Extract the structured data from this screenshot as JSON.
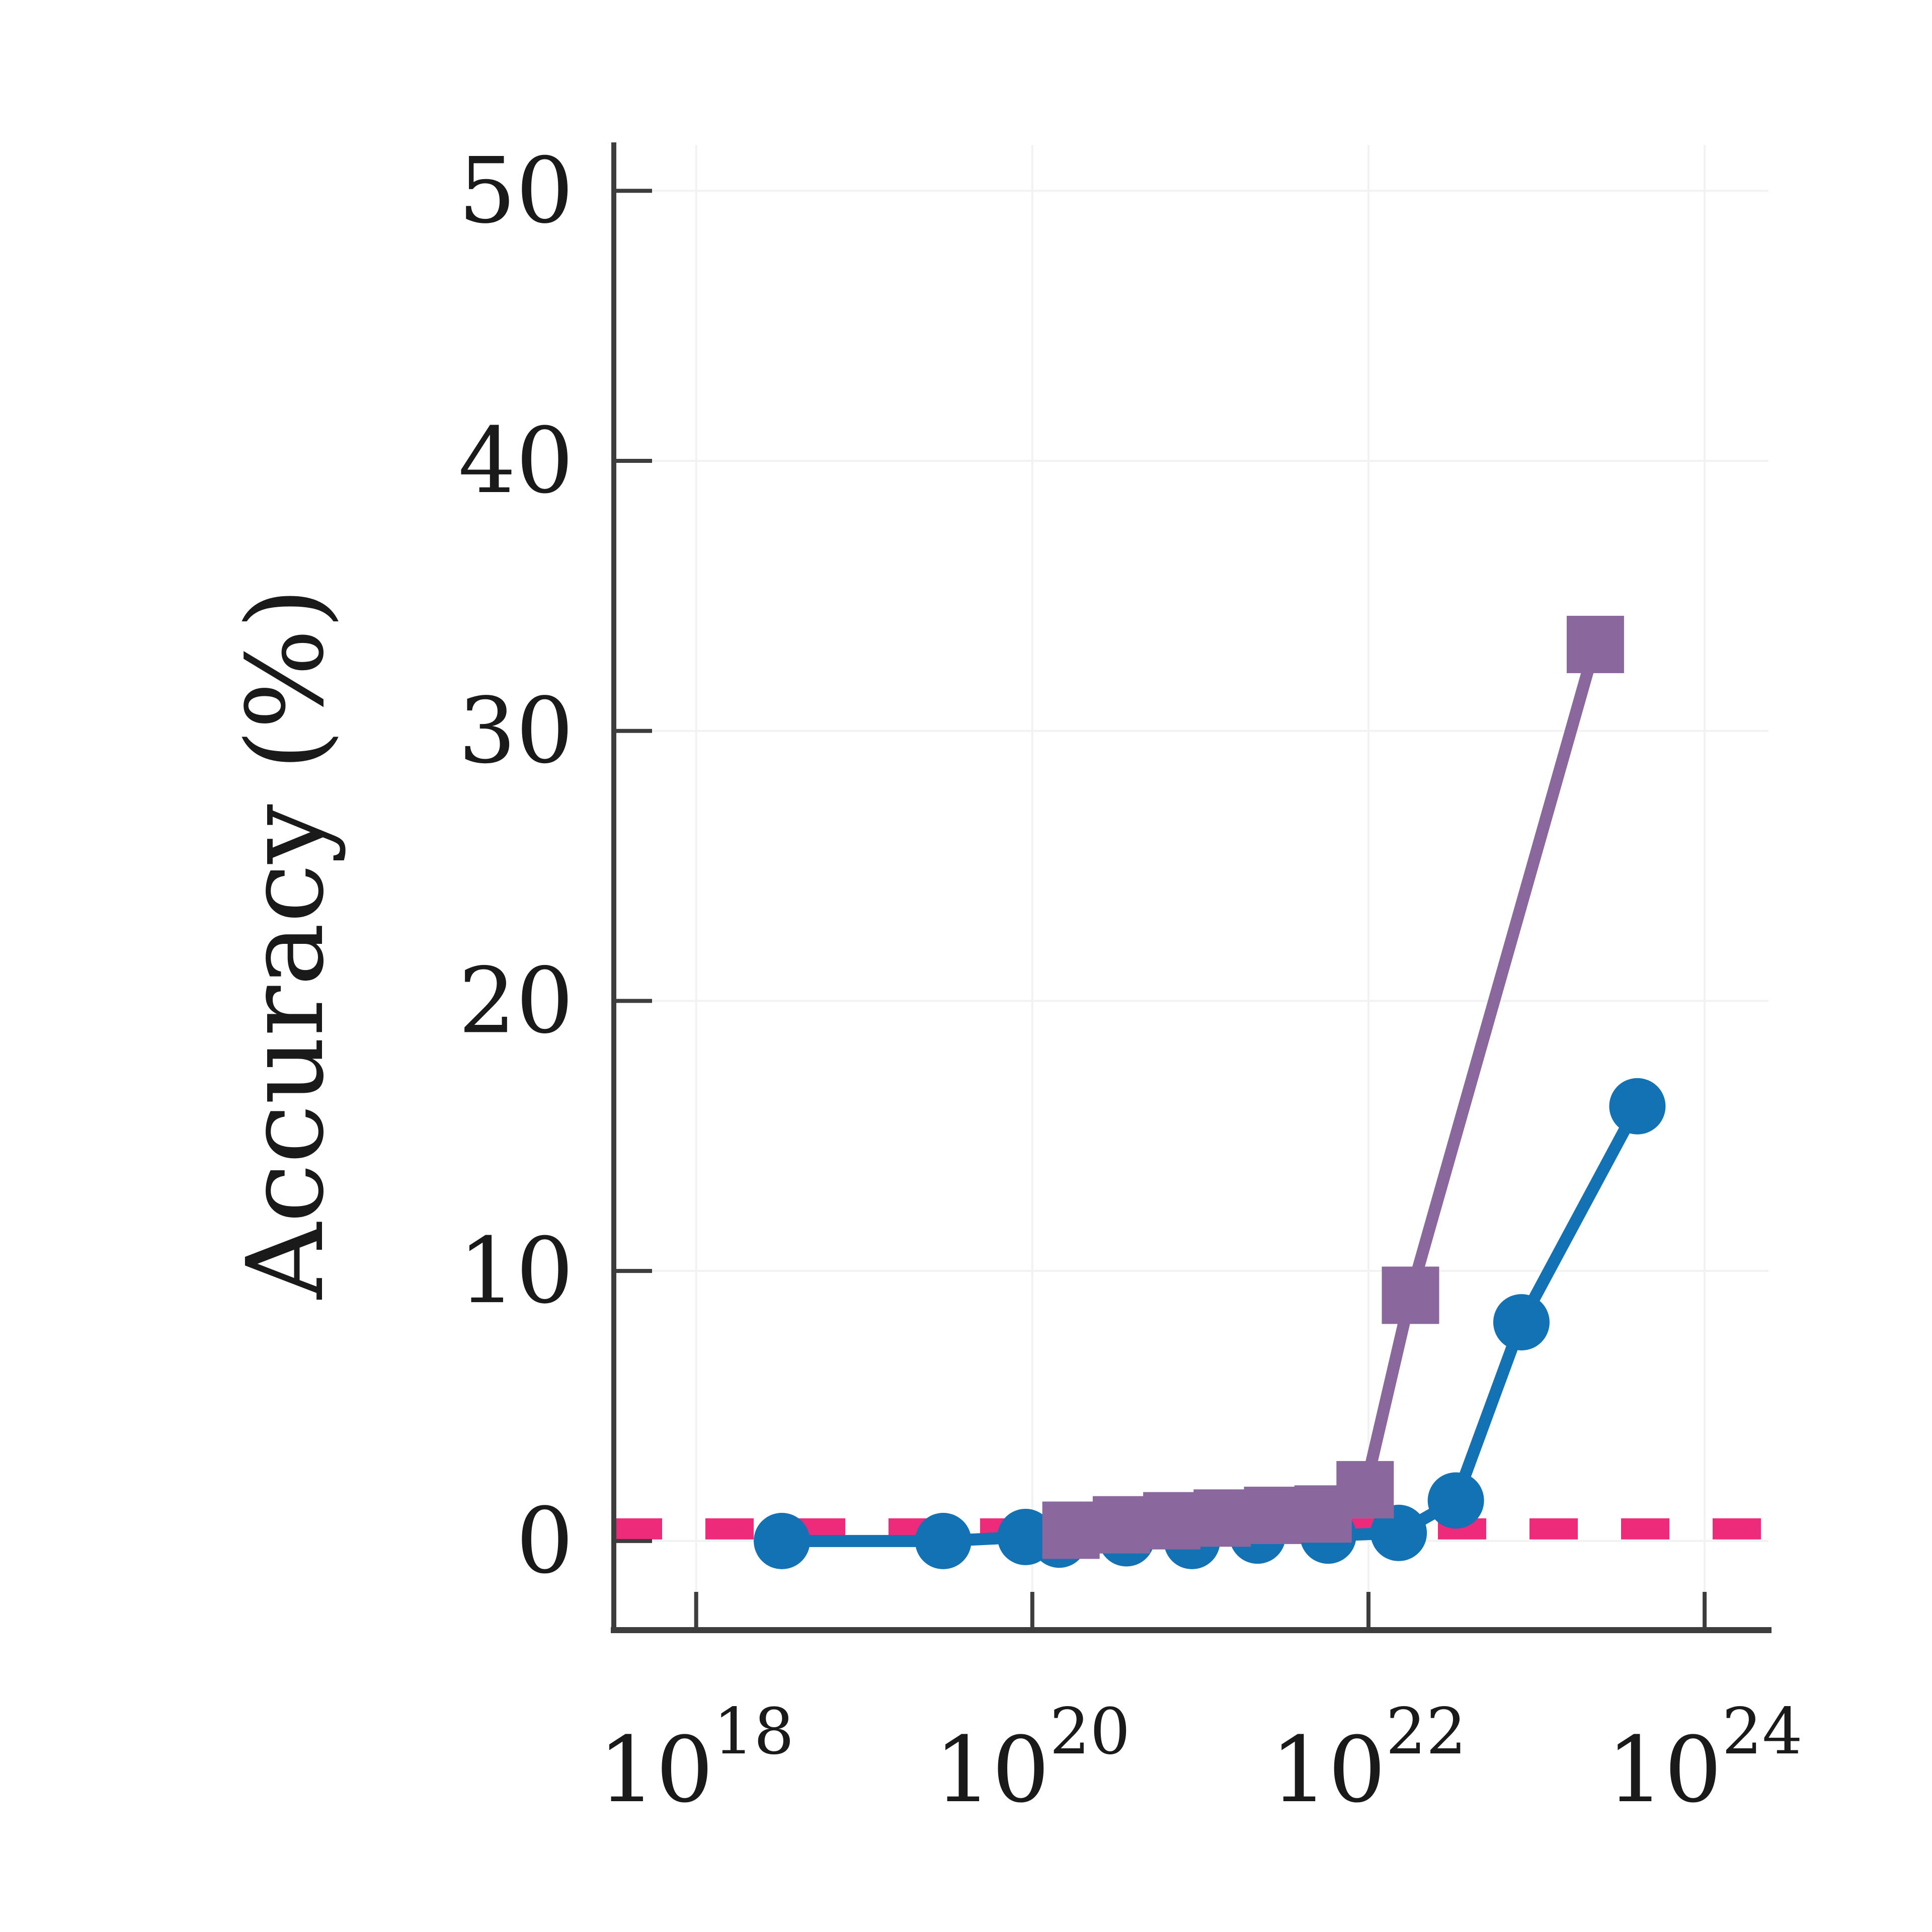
{
  "figure": {
    "type": "scientific-plot",
    "background": "#ffffff",
    "text_color": "#1a1a1a",
    "axis_color": "#3d3d3d",
    "grid_color": "#f2f2f2"
  },
  "chart_data": {
    "type": "line",
    "xscale": "log",
    "title": "",
    "xlabel": "",
    "ylabel": "Accuracy (%)",
    "grid": true,
    "legend": "none",
    "xlim_log10": [
      17.51,
      24.38
    ],
    "ylim": [
      -3.3,
      51.7
    ],
    "x_ticks": [
      {
        "log10": 18,
        "base": "10",
        "exp": "18"
      },
      {
        "log10": 20,
        "base": "10",
        "exp": "20"
      },
      {
        "log10": 22,
        "base": "10",
        "exp": "22"
      },
      {
        "log10": 24,
        "base": "10",
        "exp": "24"
      }
    ],
    "y_ticks": [
      0,
      10,
      20,
      30,
      40,
      50
    ],
    "baseline": {
      "name": "chance-baseline",
      "value": 0.45,
      "color": "#ee2a7b",
      "style": "dashed"
    },
    "series": [
      {
        "name": "blue-circles",
        "marker": "circle",
        "color": "#1272b4",
        "points": [
          {
            "flops": "3.2e18",
            "log10_flops": 18.51,
            "accuracy": 0.0
          },
          {
            "flops": "3.0e19",
            "log10_flops": 19.47,
            "accuracy": 0.0
          },
          {
            "flops": "9.1e19",
            "log10_flops": 19.96,
            "accuracy": 0.15
          },
          {
            "flops": "1.4e20",
            "log10_flops": 20.16,
            "accuracy": 0.05
          },
          {
            "flops": "3.6e20",
            "log10_flops": 20.56,
            "accuracy": 0.1
          },
          {
            "flops": "8.9e20",
            "log10_flops": 20.95,
            "accuracy": 0.0
          },
          {
            "flops": "2.2e21",
            "log10_flops": 21.34,
            "accuracy": 0.2
          },
          {
            "flops": "5.8e21",
            "log10_flops": 21.76,
            "accuracy": 0.2
          },
          {
            "flops": "1.5e22",
            "log10_flops": 22.18,
            "accuracy": 0.3
          },
          {
            "flops": "3.3e22",
            "log10_flops": 22.52,
            "accuracy": 1.5
          },
          {
            "flops": "8.1e22",
            "log10_flops": 22.91,
            "accuracy": 8.1
          },
          {
            "flops": "4.0e23",
            "log10_flops": 23.6,
            "accuracy": 16.1
          }
        ]
      },
      {
        "name": "purple-squares",
        "marker": "square",
        "color": "#8a689d",
        "points": [
          {
            "flops": "1.7e20",
            "log10_flops": 20.23,
            "accuracy": 0.4
          },
          {
            "flops": "3.4e20",
            "log10_flops": 20.53,
            "accuracy": 0.6
          },
          {
            "flops": "6.8e20",
            "log10_flops": 20.83,
            "accuracy": 0.75
          },
          {
            "flops": "1.3e21",
            "log10_flops": 21.13,
            "accuracy": 0.85
          },
          {
            "flops": "2.7e21",
            "log10_flops": 21.43,
            "accuracy": 0.95
          },
          {
            "flops": "5.4e21",
            "log10_flops": 21.73,
            "accuracy": 1.0
          },
          {
            "flops": "9.5e21",
            "log10_flops": 21.98,
            "accuracy": 1.9
          },
          {
            "flops": "1.8e22",
            "log10_flops": 22.25,
            "accuracy": 9.1
          },
          {
            "flops": "2.2e23",
            "log10_flops": 23.35,
            "accuracy": 33.2
          }
        ]
      }
    ]
  }
}
